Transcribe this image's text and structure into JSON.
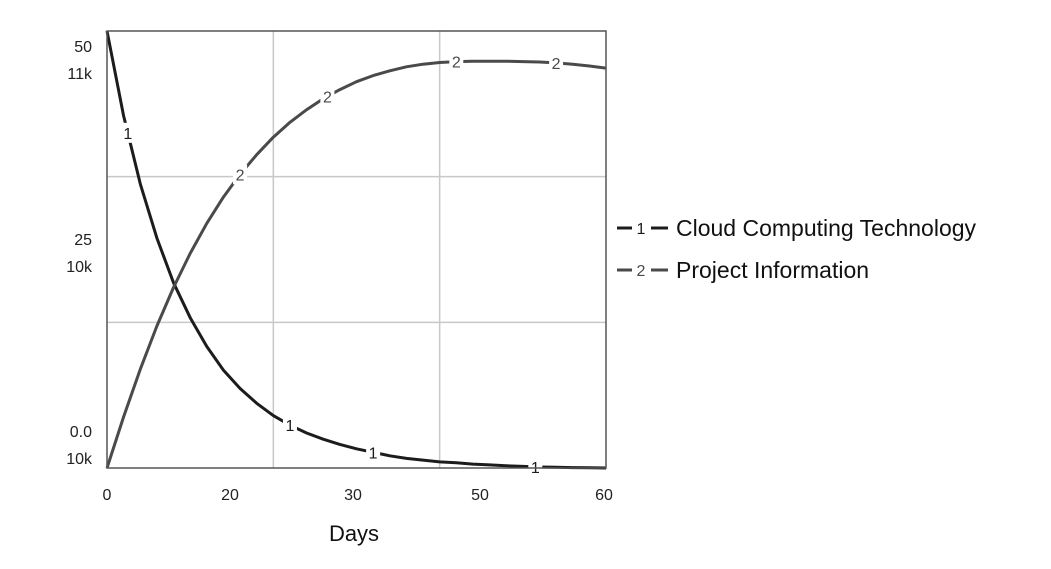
{
  "chart_data": {
    "type": "line",
    "xlabel": "Days",
    "xlim": [
      0,
      60
    ],
    "x_ticks": [
      "0",
      "20",
      "30",
      "50",
      "60"
    ],
    "y_axes": [
      {
        "ylim": [
          0,
          50
        ],
        "ticks": [
          "50",
          "25",
          "0.0"
        ]
      },
      {
        "ylim": [
          10000,
          11000
        ],
        "ticks": [
          "11k",
          "10k",
          "10k"
        ]
      }
    ],
    "grid": true,
    "legend_position": "right",
    "series": [
      {
        "name": "Cloud Computing Technology",
        "marker": "1",
        "axis": 0,
        "color": "#1c1c1c",
        "x": [
          0,
          2,
          4,
          6,
          8,
          10,
          12,
          14,
          16,
          18,
          20,
          22,
          24,
          26,
          28,
          30,
          32,
          34,
          36,
          38,
          40,
          42,
          44,
          46,
          48,
          50,
          52,
          54,
          56,
          58,
          60
        ],
        "y": [
          50.0,
          40.3,
          32.5,
          26.3,
          21.2,
          17.2,
          13.9,
          11.2,
          9.1,
          7.4,
          6.0,
          4.9,
          4.0,
          3.3,
          2.7,
          2.2,
          1.8,
          1.4,
          1.1,
          0.9,
          0.7,
          0.6,
          0.45,
          0.35,
          0.25,
          0.18,
          0.12,
          0.08,
          0.05,
          0.03,
          0.0
        ]
      },
      {
        "name": "Project Information",
        "marker": "2",
        "axis": 1,
        "color": "#4a4a4a",
        "x": [
          0,
          2,
          4,
          6,
          8,
          10,
          12,
          14,
          16,
          18,
          20,
          22,
          24,
          26,
          28,
          30,
          32,
          34,
          36,
          38,
          40,
          42,
          44,
          46,
          48,
          50,
          52,
          54,
          56,
          58,
          60
        ],
        "y": [
          10000,
          10117,
          10226,
          10325,
          10413,
          10491,
          10560,
          10620,
          10672,
          10717,
          10757,
          10791,
          10820,
          10845,
          10866,
          10884,
          10898,
          10909,
          10918,
          10924,
          10928,
          10930,
          10931,
          10931,
          10931,
          10930,
          10929,
          10927,
          10924,
          10920,
          10915
        ]
      }
    ]
  }
}
